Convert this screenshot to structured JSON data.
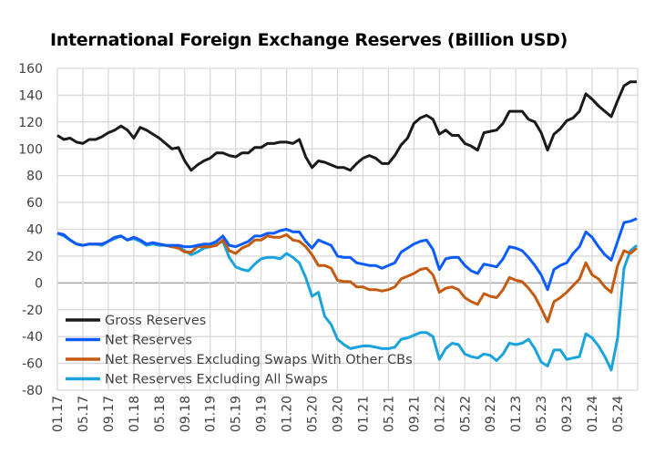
{
  "chart_data": {
    "type": "line",
    "title": "International Foreign Exchange Reserves (Billion USD)",
    "xlabel": "",
    "ylabel": "",
    "ylim": [
      -80,
      160
    ],
    "yticks": [
      "160",
      "140",
      "120",
      "100",
      "80",
      "60",
      "40",
      "20",
      "0",
      "-20",
      "-40",
      "-60",
      "-80"
    ],
    "xticks": [
      "01.17",
      "05.17",
      "09.17",
      "01.18",
      "05.18",
      "09.18",
      "01.19",
      "05.19",
      "09.19",
      "01.20",
      "05.20",
      "09.20",
      "01.21",
      "05.21",
      "09.21",
      "01.22",
      "05.22",
      "09.22",
      "01.23",
      "05.23",
      "09.23",
      "01.24",
      "05.24"
    ],
    "grid": true,
    "legend_position": "bottom-left",
    "x": [
      "01.17",
      "02.17",
      "03.17",
      "04.17",
      "05.17",
      "06.17",
      "07.17",
      "08.17",
      "09.17",
      "10.17",
      "11.17",
      "12.17",
      "01.18",
      "02.18",
      "03.18",
      "04.18",
      "05.18",
      "06.18",
      "07.18",
      "08.18",
      "09.18",
      "10.18",
      "11.18",
      "12.18",
      "01.19",
      "02.19",
      "03.19",
      "04.19",
      "05.19",
      "06.19",
      "07.19",
      "08.19",
      "09.19",
      "10.19",
      "11.19",
      "12.19",
      "01.20",
      "02.20",
      "03.20",
      "04.20",
      "05.20",
      "06.20",
      "07.20",
      "08.20",
      "09.20",
      "10.20",
      "11.20",
      "12.20",
      "01.21",
      "02.21",
      "03.21",
      "04.21",
      "05.21",
      "06.21",
      "07.21",
      "08.21",
      "09.21",
      "10.21",
      "11.21",
      "12.21",
      "01.22",
      "02.22",
      "03.22",
      "04.22",
      "05.22",
      "06.22",
      "07.22",
      "08.22",
      "09.22",
      "10.22",
      "11.22",
      "12.22",
      "01.23",
      "02.23",
      "03.23",
      "04.23",
      "05.23",
      "06.23",
      "07.23",
      "08.23",
      "09.23",
      "10.23",
      "11.23",
      "12.23",
      "01.24",
      "02.24",
      "03.24",
      "04.24",
      "05.24",
      "06.24",
      "07.24",
      "08.24"
    ],
    "series": [
      {
        "name": "Gross Reserves",
        "color": "#1a1a1a",
        "values": [
          110,
          107,
          108,
          105,
          104,
          107,
          107,
          109,
          112,
          114,
          117,
          114,
          108,
          116,
          114,
          111,
          108,
          104,
          100,
          101,
          91,
          84,
          88,
          91,
          93,
          97,
          97,
          95,
          94,
          97,
          97,
          101,
          101,
          104,
          104,
          105,
          105,
          104,
          107,
          94,
          86,
          91,
          90,
          88,
          86,
          86,
          84,
          89,
          93,
          95,
          93,
          89,
          89,
          95,
          103,
          108,
          119,
          123,
          125,
          122,
          111,
          114,
          110,
          110,
          104,
          102,
          99,
          112,
          113,
          114,
          119,
          128,
          128,
          128,
          122,
          120,
          112,
          99,
          111,
          115,
          121,
          123,
          128,
          141,
          137,
          132,
          128,
          124,
          136,
          147,
          150,
          150
        ]
      },
      {
        "name": "Net Reserves",
        "color": "#0a5cff",
        "values": [
          37,
          36,
          32,
          29,
          28,
          29,
          29,
          29,
          31,
          34,
          35,
          32,
          34,
          32,
          29,
          30,
          29,
          28,
          28,
          28,
          27,
          27,
          28,
          29,
          29,
          31,
          35,
          28,
          27,
          29,
          31,
          35,
          35,
          37,
          37,
          39,
          40,
          38,
          38,
          31,
          26,
          32,
          30,
          28,
          20,
          19,
          19,
          15,
          14,
          13,
          13,
          11,
          13,
          15,
          23,
          26,
          29,
          31,
          32,
          25,
          10,
          18,
          19,
          19,
          13,
          9,
          7,
          14,
          13,
          12,
          18,
          27,
          26,
          24,
          19,
          13,
          6,
          -5,
          10,
          13,
          15,
          22,
          27,
          38,
          34,
          27,
          21,
          17,
          31,
          45,
          46,
          48
        ]
      },
      {
        "name": "Net Reserves Excluding Swaps With Other CBs",
        "color": "#c55a11",
        "values": [
          37,
          36,
          32,
          29,
          28,
          29,
          29,
          29,
          31,
          34,
          35,
          32,
          34,
          32,
          29,
          30,
          29,
          28,
          27,
          26,
          23,
          23,
          27,
          27,
          27,
          28,
          32,
          24,
          22,
          26,
          28,
          32,
          32,
          35,
          34,
          34,
          36,
          32,
          31,
          27,
          21,
          13,
          13,
          11,
          2,
          1,
          1,
          -3,
          -3,
          -5,
          -5,
          -6,
          -5,
          -3,
          3,
          5,
          7,
          10,
          11,
          6,
          -7,
          -4,
          -3,
          -5,
          -11,
          -14,
          -16,
          -8,
          -10,
          -11,
          -5,
          4,
          2,
          1,
          -4,
          -10,
          -19,
          -29,
          -14,
          -11,
          -7,
          -2,
          3,
          15,
          6,
          3,
          -3,
          -7,
          13,
          24,
          22,
          26
        ]
      },
      {
        "name": "Net Reserves Excluding All Swaps",
        "color": "#1aa3dd",
        "values": [
          37,
          35,
          32,
          29,
          28,
          29,
          29,
          28,
          31,
          33,
          35,
          32,
          33,
          31,
          28,
          29,
          28,
          28,
          27,
          27,
          24,
          21,
          23,
          26,
          27,
          29,
          31,
          19,
          12,
          10,
          9,
          14,
          18,
          19,
          19,
          18,
          22,
          19,
          15,
          4,
          -10,
          -7,
          -25,
          -31,
          -42,
          -46,
          -49,
          -48,
          -47,
          -47,
          -48,
          -49,
          -49,
          -48,
          -42,
          -41,
          -39,
          -37,
          -37,
          -40,
          -57,
          -49,
          -45,
          -46,
          -53,
          -55,
          -56,
          -53,
          -54,
          -58,
          -53,
          -45,
          -46,
          -45,
          -42,
          -49,
          -59,
          -62,
          -50,
          -50,
          -57,
          -56,
          -55,
          -38,
          -41,
          -47,
          -55,
          -65,
          -41,
          11,
          24,
          28
        ]
      }
    ]
  }
}
